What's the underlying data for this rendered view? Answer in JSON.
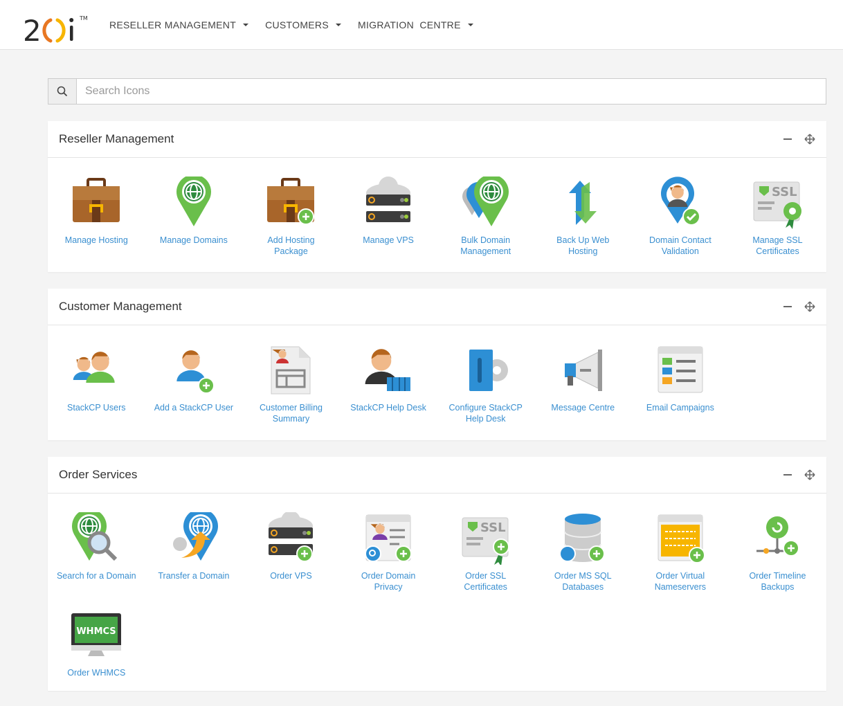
{
  "logo": {
    "text": "20i",
    "tm": "TM"
  },
  "nav": [
    {
      "label": "RESELLER MANAGEMENT"
    },
    {
      "label": "CUSTOMERS"
    },
    {
      "label": "MIGRATION  CENTRE"
    }
  ],
  "search": {
    "placeholder": "Search Icons",
    "value": ""
  },
  "sections": [
    {
      "title": "Reseller Management",
      "items": [
        {
          "label": "Manage Hosting",
          "icon": "briefcase"
        },
        {
          "label": "Manage Domains",
          "icon": "globe-pin"
        },
        {
          "label": "Add Hosting Package",
          "icon": "briefcase-plus"
        },
        {
          "label": "Manage VPS",
          "icon": "server-cloud"
        },
        {
          "label": "Bulk Domain Management",
          "icon": "globe-pins"
        },
        {
          "label": "Back Up Web Hosting",
          "icon": "backup-arrows"
        },
        {
          "label": "Domain Contact Validation",
          "icon": "user-pin-check"
        },
        {
          "label": "Manage SSL Certificates",
          "icon": "ssl-gear"
        }
      ]
    },
    {
      "title": "Customer Management",
      "items": [
        {
          "label": "StackCP Users",
          "icon": "users"
        },
        {
          "label": "Add a StackCP User",
          "icon": "user-plus"
        },
        {
          "label": "Customer Billing Summary",
          "icon": "billing-doc"
        },
        {
          "label": "StackCP Help Desk",
          "icon": "helpdesk-user"
        },
        {
          "label": "Configure StackCP Help Desk",
          "icon": "helpdesk-gear"
        },
        {
          "label": "Message Centre",
          "icon": "megaphone"
        },
        {
          "label": "Email Campaigns",
          "icon": "email-campaign"
        }
      ]
    },
    {
      "title": "Order Services",
      "items": [
        {
          "label": "Search for a Domain",
          "icon": "globe-search"
        },
        {
          "label": "Transfer a Domain",
          "icon": "globe-transfer"
        },
        {
          "label": "Order VPS",
          "icon": "server-plus"
        },
        {
          "label": "Order Domain Privacy",
          "icon": "privacy-window"
        },
        {
          "label": "Order SSL Certificates",
          "icon": "ssl-plus"
        },
        {
          "label": "Order MS SQL Databases",
          "icon": "database-plus"
        },
        {
          "label": "Order Virtual Nameservers",
          "icon": "nameserver-plus"
        },
        {
          "label": "Order Timeline Backups",
          "icon": "timeline-backup"
        },
        {
          "label": "Order WHMCS",
          "icon": "whmcs-monitor",
          "badge": "WHMCS"
        }
      ]
    }
  ],
  "colors": {
    "link": "#3a8fd0",
    "green": "#6abf4b",
    "blue": "#2d8fd5",
    "brown": "#a8652a",
    "orange": "#f5a623"
  }
}
